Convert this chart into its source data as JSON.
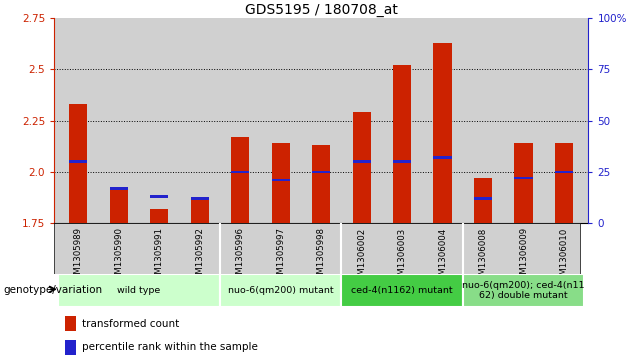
{
  "title": "GDS5195 / 180708_at",
  "samples": [
    "GSM1305989",
    "GSM1305990",
    "GSM1305991",
    "GSM1305992",
    "GSM1305996",
    "GSM1305997",
    "GSM1305998",
    "GSM1306002",
    "GSM1306003",
    "GSM1306004",
    "GSM1306008",
    "GSM1306009",
    "GSM1306010"
  ],
  "red_values": [
    2.33,
    1.92,
    1.82,
    1.87,
    2.17,
    2.14,
    2.13,
    2.29,
    2.52,
    2.63,
    1.97,
    2.14,
    2.14
  ],
  "blue_positions": [
    2.05,
    1.92,
    1.88,
    1.87,
    2.0,
    1.96,
    2.0,
    2.05,
    2.05,
    2.07,
    1.87,
    1.97,
    2.0
  ],
  "y_min": 1.75,
  "y_max": 2.75,
  "y_ticks_left": [
    1.75,
    2.0,
    2.25,
    2.5,
    2.75
  ],
  "y_ticks_right": [
    0,
    25,
    50,
    75,
    100
  ],
  "group_labels": [
    "wild type",
    "nuo-6(qm200) mutant",
    "ced-4(n1162) mutant",
    "nuo-6(qm200); ced-4(n11\n62) double mutant"
  ],
  "group_ranges": [
    [
      0,
      3
    ],
    [
      4,
      6
    ],
    [
      7,
      9
    ],
    [
      10,
      12
    ]
  ],
  "group_colors": [
    "#ccffcc",
    "#99dd99",
    "#44bb44",
    "#88cc88"
  ],
  "bar_color": "#cc2200",
  "blue_color": "#2222cc",
  "bg_color": "#d0d0d0",
  "xlabel": "genotype/variation",
  "legend_red": "transformed count",
  "legend_blue": "percentile rank within the sample",
  "title_fontsize": 10,
  "tick_fontsize": 7.5,
  "sample_fontsize": 6.2
}
